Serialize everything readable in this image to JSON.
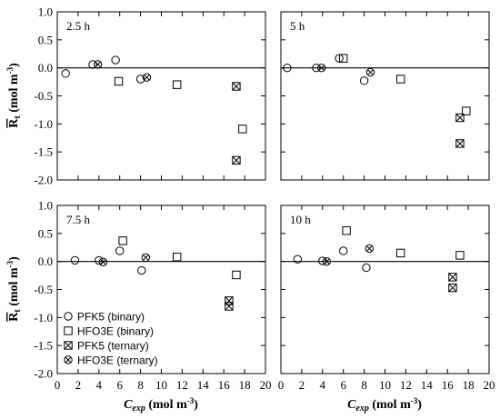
{
  "chart_data": {
    "type": "scatter",
    "xlabel": "C",
    "xlabel_sub": "exp",
    "xlabel_unit": "(mol m",
    "xlabel_unit_sup": "-3",
    "xlabel_unit_close": ")",
    "ylabel": "R",
    "ylabel_sub": "t",
    "ylabel_unit": "(mol m",
    "ylabel_unit_sup": "-3",
    "ylabel_unit_close": ")",
    "xlim": [
      0,
      20
    ],
    "ylim": [
      -2.0,
      1.0
    ],
    "xticks": [
      0,
      2,
      4,
      6,
      8,
      10,
      12,
      14,
      16,
      18,
      20
    ],
    "yticks": [
      1.0,
      0.5,
      0.0,
      -0.5,
      -1.0,
      -1.5,
      -2.0
    ],
    "ytick_labels": [
      "1.0",
      "0.5",
      "0.0",
      "-0.5",
      "-1.0",
      "-1.5",
      "-2.0"
    ],
    "grid": false,
    "reference_line_y": 0,
    "legend": {
      "placement": "bottom-left of panel 7.5 h",
      "entries": [
        {
          "label": "PFK5 (binary)",
          "marker": "circle"
        },
        {
          "label": "HFO3E (binary)",
          "marker": "square"
        },
        {
          "label": "PFK5 (ternary)",
          "marker": "square-x"
        },
        {
          "label": "HFO3E (ternary)",
          "marker": "circle-x"
        }
      ]
    },
    "panels": [
      {
        "label": "2.5 h",
        "series": [
          {
            "name": "PFK5 (binary)",
            "marker": "circle",
            "points": [
              [
                0.8,
                -0.1
              ],
              [
                3.4,
                0.06
              ],
              [
                5.6,
                0.14
              ],
              [
                8.0,
                -0.2
              ]
            ]
          },
          {
            "name": "HFO3E (binary)",
            "marker": "square",
            "points": [
              [
                5.9,
                -0.24
              ],
              [
                11.5,
                -0.3
              ],
              [
                17.8,
                -1.09
              ]
            ]
          },
          {
            "name": "PFK5 (ternary)",
            "marker": "square-x",
            "points": [
              [
                17.2,
                -0.33
              ],
              [
                17.2,
                -1.65
              ]
            ]
          },
          {
            "name": "HFO3E (ternary)",
            "marker": "circle-x",
            "points": [
              [
                3.9,
                0.06
              ],
              [
                8.6,
                -0.17
              ]
            ]
          }
        ]
      },
      {
        "label": "5 h",
        "series": [
          {
            "name": "PFK5 (binary)",
            "marker": "circle",
            "points": [
              [
                0.6,
                0.0
              ],
              [
                3.4,
                0.0
              ],
              [
                5.6,
                0.17
              ],
              [
                8.0,
                -0.23
              ]
            ]
          },
          {
            "name": "HFO3E (binary)",
            "marker": "square",
            "points": [
              [
                6.0,
                0.17
              ],
              [
                11.5,
                -0.2
              ],
              [
                17.8,
                -0.77
              ]
            ]
          },
          {
            "name": "PFK5 (ternary)",
            "marker": "square-x",
            "points": [
              [
                17.2,
                -0.89
              ],
              [
                17.2,
                -1.35
              ]
            ]
          },
          {
            "name": "HFO3E (ternary)",
            "marker": "circle-x",
            "points": [
              [
                3.9,
                0.0
              ],
              [
                8.6,
                -0.08
              ]
            ]
          }
        ]
      },
      {
        "label": "7.5 h",
        "series": [
          {
            "name": "PFK5 (binary)",
            "marker": "circle",
            "points": [
              [
                1.7,
                0.02
              ],
              [
                4.0,
                0.02
              ],
              [
                6.0,
                0.19
              ],
              [
                8.1,
                -0.16
              ]
            ]
          },
          {
            "name": "HFO3E (binary)",
            "marker": "square",
            "points": [
              [
                6.3,
                0.37
              ],
              [
                11.5,
                0.08
              ],
              [
                17.2,
                -0.24
              ]
            ]
          },
          {
            "name": "PFK5 (ternary)",
            "marker": "square-x",
            "points": [
              [
                16.5,
                -0.7
              ],
              [
                16.5,
                -0.8
              ]
            ]
          },
          {
            "name": "HFO3E (ternary)",
            "marker": "circle-x",
            "points": [
              [
                4.4,
                -0.01
              ],
              [
                8.5,
                0.07
              ]
            ]
          }
        ]
      },
      {
        "label": "10 h",
        "series": [
          {
            "name": "PFK5 (binary)",
            "marker": "circle",
            "points": [
              [
                1.6,
                0.04
              ],
              [
                4.0,
                0.01
              ],
              [
                6.0,
                0.19
              ],
              [
                8.2,
                -0.11
              ]
            ]
          },
          {
            "name": "HFO3E (binary)",
            "marker": "square",
            "points": [
              [
                6.3,
                0.55
              ],
              [
                11.5,
                0.15
              ],
              [
                17.2,
                0.11
              ]
            ]
          },
          {
            "name": "PFK5 (ternary)",
            "marker": "square-x",
            "points": [
              [
                16.5,
                -0.28
              ],
              [
                16.5,
                -0.47
              ]
            ]
          },
          {
            "name": "HFO3E (ternary)",
            "marker": "circle-x",
            "points": [
              [
                4.4,
                0.0
              ],
              [
                8.5,
                0.23
              ]
            ]
          }
        ]
      }
    ]
  }
}
